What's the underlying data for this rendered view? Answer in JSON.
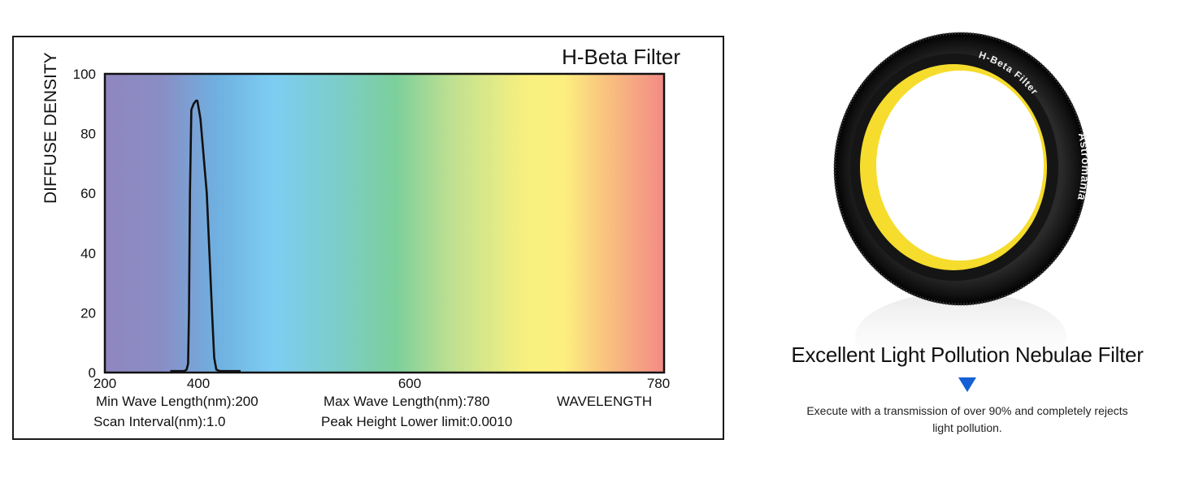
{
  "chart_data": {
    "type": "line",
    "title": "H-Beta Filter",
    "xlabel": "WAVELENGTH",
    "ylabel": "DIFFUSE DENSITY",
    "xlim": [
      200,
      780
    ],
    "ylim": [
      0,
      100
    ],
    "x_ticks": [
      200,
      400,
      600,
      780
    ],
    "y_ticks": [
      0,
      20,
      40,
      60,
      80,
      100
    ],
    "grid": false,
    "background": "visible spectrum gradient",
    "series": [
      {
        "color": "#111111",
        "x": [
          340,
          370,
          375,
          378,
          380,
          382,
          385,
          390,
          395,
          398,
          402,
          408,
          413,
          415,
          417,
          420,
          425,
          440
        ],
        "y": [
          0.5,
          0.5,
          1,
          3,
          20,
          60,
          88,
          90,
          91,
          91,
          85,
          60,
          20,
          5,
          1,
          0.5,
          0.5,
          0.5
        ]
      }
    ],
    "info": [
      "Min Wave Length(nm):200",
      "Max Wave Length(nm):780",
      "Scan Interval(nm):1.0",
      "Peak Height Lower limit:0.0010"
    ]
  },
  "product": {
    "headline": "Excellent Light Pollution Nebulae Filter",
    "description": "Execute with a transmission of over 90% and completely rejects light pollution.",
    "ring_text": "H-Beta Filter",
    "brand": "Astromania",
    "arrow_color": "#1560d4"
  }
}
